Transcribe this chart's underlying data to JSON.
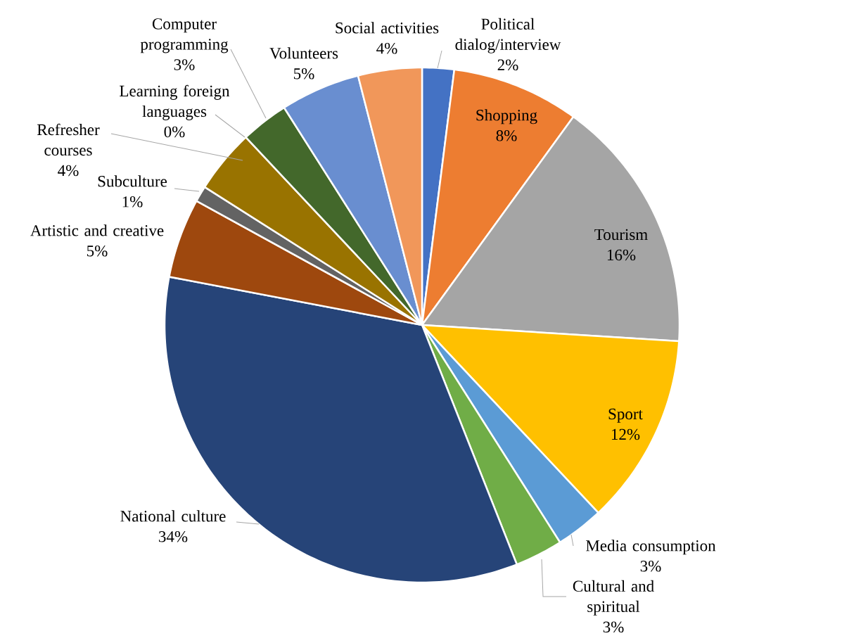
{
  "chart_data": {
    "type": "pie",
    "categories": [
      "Political dialog/interview",
      "Shopping",
      "Tourism",
      "Sport",
      "Media consumption",
      "Cultural and spiritual",
      "National culture",
      "Artistic and creative",
      "Subculture",
      "Refresher courses",
      "Learning foreign languages",
      "Computer programming",
      "Volunteers",
      "Social activities"
    ],
    "values": [
      2,
      8,
      16,
      12,
      3,
      3,
      34,
      5,
      1,
      4,
      0,
      3,
      5,
      4
    ],
    "colors": [
      "#4472c4",
      "#ed7d31",
      "#a5a5a5",
      "#ffc000",
      "#5b9bd5",
      "#70ad47",
      "#264478",
      "#9e480e",
      "#636363",
      "#997300",
      "#255e91",
      "#43682b",
      "#698ed0",
      "#f1975a"
    ],
    "value_labels": [
      "2%",
      "8%",
      "16%",
      "12%",
      "3%",
      "3%",
      "34%",
      "5%",
      "1%",
      "4%",
      "0%",
      "3%",
      "5%",
      "4%"
    ]
  }
}
